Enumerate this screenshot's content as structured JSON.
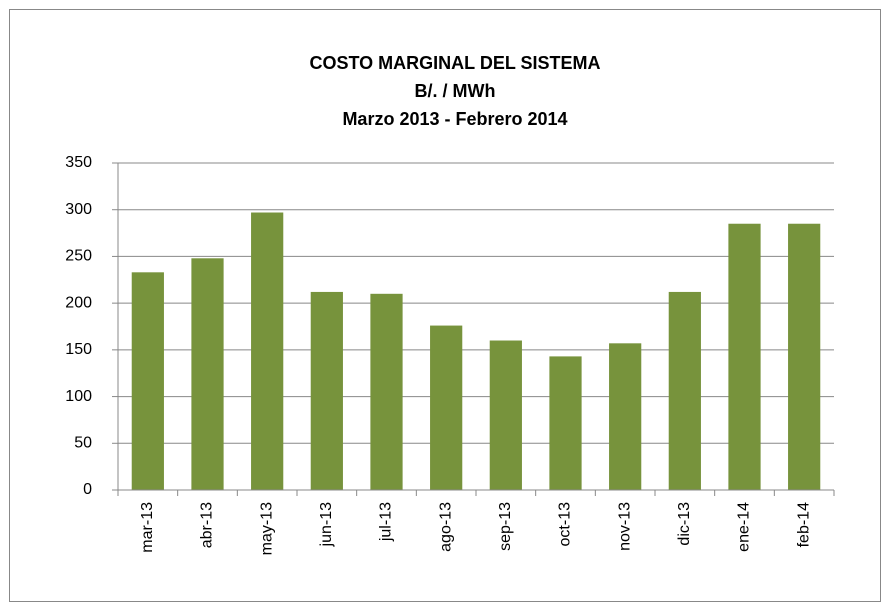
{
  "chart_data": {
    "type": "bar",
    "title": [
      "COSTO  MARGINAL DEL SISTEMA",
      "B/.  / MWh",
      "Marzo 2013   -  Febrero 2014"
    ],
    "categories": [
      "mar-13",
      "abr-13",
      "may-13",
      "jun-13",
      "jul-13",
      "ago-13",
      "sep-13",
      "oct-13",
      "nov-13",
      "dic-13",
      "ene-14",
      "feb-14"
    ],
    "values": [
      233,
      248,
      297,
      212,
      210,
      176,
      160,
      143,
      157,
      212,
      285,
      285
    ],
    "color": "#77933c",
    "ylim": [
      0,
      350
    ],
    "yticks": [
      0,
      50,
      100,
      150,
      200,
      250,
      300,
      350
    ],
    "grid": true
  }
}
